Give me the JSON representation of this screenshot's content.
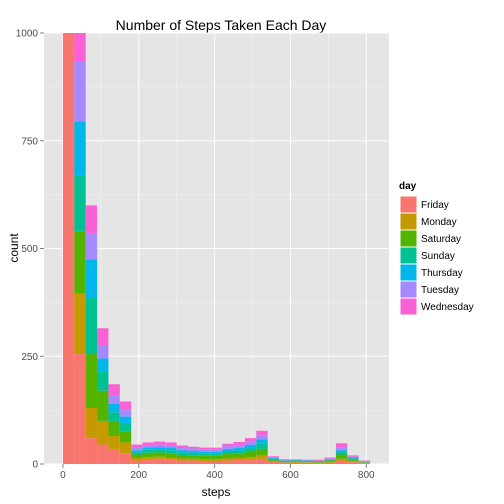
{
  "chart_data": {
    "type": "bar",
    "subtype": "stacked-histogram",
    "title": "Number of Steps Taken Each Day",
    "xlabel": "steps",
    "ylabel": "count",
    "xlim": [
      -50,
      860
    ],
    "ylim": [
      0,
      1000
    ],
    "x_ticks": [
      0,
      200,
      400,
      600,
      800
    ],
    "y_ticks": [
      0,
      250,
      500,
      750,
      1000
    ],
    "grid": true,
    "legend_position": "right",
    "legend_title": "day",
    "bin_width": 30,
    "bins": [
      0,
      30,
      60,
      90,
      120,
      150,
      180,
      210,
      240,
      270,
      300,
      330,
      360,
      390,
      420,
      450,
      480,
      510,
      540,
      570,
      600,
      630,
      660,
      690,
      720,
      750,
      780
    ],
    "series": [
      {
        "name": "Friday",
        "color": "#F8766D",
        "values": [
          1000,
          255,
          60,
          45,
          35,
          25,
          8,
          10,
          12,
          10,
          8,
          8,
          7,
          7,
          8,
          9,
          10,
          12,
          5,
          3,
          3,
          3,
          2,
          3,
          8,
          5,
          2
        ]
      },
      {
        "name": "Monday",
        "color": "#C49A00",
        "values": [
          0,
          140,
          70,
          55,
          30,
          25,
          6,
          6,
          5,
          5,
          5,
          4,
          4,
          4,
          5,
          5,
          6,
          8,
          2,
          1,
          2,
          1,
          1,
          2,
          4,
          2,
          1
        ]
      },
      {
        "name": "Saturday",
        "color": "#53B400",
        "values": [
          0,
          145,
          125,
          70,
          35,
          25,
          8,
          10,
          10,
          10,
          8,
          8,
          8,
          8,
          10,
          10,
          12,
          15,
          3,
          2,
          2,
          2,
          2,
          3,
          10,
          4,
          1
        ]
      },
      {
        "name": "Sunday",
        "color": "#00C094",
        "values": [
          0,
          130,
          130,
          45,
          20,
          20,
          5,
          7,
          7,
          7,
          6,
          6,
          5,
          5,
          7,
          7,
          9,
          12,
          2,
          1,
          1,
          1,
          1,
          2,
          5,
          2,
          1
        ]
      },
      {
        "name": "Thursday",
        "color": "#00B6EB",
        "values": [
          0,
          125,
          90,
          30,
          20,
          15,
          5,
          5,
          5,
          6,
          5,
          5,
          4,
          4,
          5,
          6,
          7,
          10,
          2,
          1,
          1,
          1,
          1,
          1,
          5,
          2,
          1
        ]
      },
      {
        "name": "Tuesday",
        "color": "#A58AFF",
        "values": [
          0,
          140,
          60,
          30,
          20,
          15,
          6,
          6,
          6,
          6,
          5,
          5,
          5,
          5,
          6,
          7,
          8,
          10,
          2,
          1,
          1,
          1,
          1,
          2,
          6,
          2,
          1
        ]
      },
      {
        "name": "Wednesday",
        "color": "#FB61D7",
        "values": [
          0,
          140,
          65,
          40,
          25,
          20,
          7,
          6,
          7,
          6,
          6,
          4,
          5,
          5,
          6,
          7,
          8,
          10,
          2,
          2,
          1,
          1,
          2,
          2,
          10,
          3,
          1
        ]
      }
    ]
  }
}
